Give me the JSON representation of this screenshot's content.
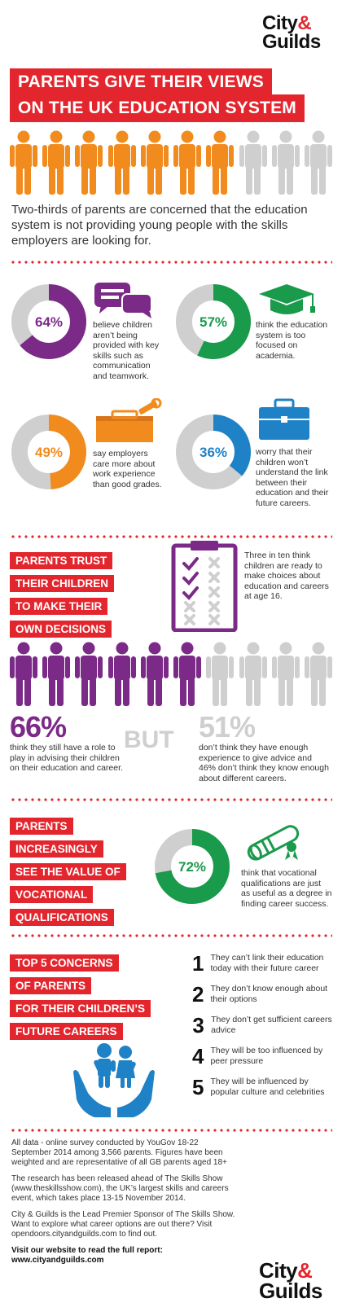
{
  "logo": {
    "city": "City",
    "amp": "&",
    "guilds": "Guilds"
  },
  "title": {
    "line1": "PARENTS GIVE THEIR VIEWS",
    "line2": "ON THE UK EDUCATION SYSTEM"
  },
  "intro": "Two-thirds of parents are concerned that the education system is not providing young people with the skills employers are looking for.",
  "stats": [
    {
      "pct": "64%",
      "value": 64,
      "color": "#7b2a87",
      "icon": "speech-bubbles-icon",
      "text": "believe children aren’t being provided with key skills such as communication and teamwork."
    },
    {
      "pct": "57%",
      "value": 57,
      "color": "#1a9a4b",
      "icon": "graduation-cap-icon",
      "text": "think the education system is too focused on academia."
    },
    {
      "pct": "49%",
      "value": 49,
      "color": "#f28b1e",
      "icon": "toolbox-icon",
      "text": "say employers care more about work experience than good grades."
    },
    {
      "pct": "36%",
      "value": 36,
      "color": "#1f82c6",
      "icon": "briefcase-icon",
      "text": "worry that their children won’t understand the link between their education and their future careers."
    }
  ],
  "trust": {
    "heading": [
      "PARENTS TRUST",
      "THEIR CHILDREN",
      "TO MAKE THEIR",
      "OWN DECISIONS"
    ],
    "clipboard_text": "Three in ten think children are ready to make choices about education and careers at age 16.",
    "left_pct": "66%",
    "left_text": "think they still have a role to play in advising their children on their education and career.",
    "but": "BUT",
    "right_pct": "51%",
    "right_text": "don’t think they have enough experience to give advice and 46% don’t think they know enough about different careers."
  },
  "vocational": {
    "heading": [
      "PARENTS",
      "INCREASINGLY",
      "SEE THE VALUE OF",
      "VOCATIONAL",
      "QUALIFICATIONS"
    ],
    "pct": "72%",
    "value": 72,
    "text": "think that vocational qualifications are just as useful as a degree in finding career success."
  },
  "concerns": {
    "heading": [
      "TOP 5 CONCERNS",
      "OF PARENTS",
      "FOR THEIR CHILDREN’S",
      "FUTURE CAREERS"
    ],
    "items": [
      {
        "num": "1",
        "text": "They can’t link their education today with their future career"
      },
      {
        "num": "2",
        "text": "They don’t know enough about their options"
      },
      {
        "num": "3",
        "text": "They don’t get sufficient careers advice"
      },
      {
        "num": "4",
        "text": "They will be too influenced by peer pressure"
      },
      {
        "num": "5",
        "text": "They will be influenced by popular culture and celebrities"
      }
    ]
  },
  "footer": {
    "p1": "All data - online survey conducted by YouGov 18-22 September 2014 among 3,566 parents. Figures have been weighted and are representative of all GB parents aged 18+",
    "p2": "The research has been released ahead of The Skills Show (www.theskillsshow.com), the UK’s largest skills and careers event, which takes place 13-15 November 2014.",
    "p3": "City & Guilds is the Lead Premier Sponsor of The Skills Show. Want to explore what career options are out there? Visit opendoors.cityandguilds.com to find out.",
    "cta1": "Visit our website to read the full report:",
    "cta2": "www.cityandguilds.com"
  },
  "colors": {
    "red": "#e3262e",
    "orange": "#f28b1e",
    "grey": "#cfcfcf",
    "purple": "#7b2a87",
    "green": "#1a9a4b",
    "blue": "#1f82c6"
  }
}
